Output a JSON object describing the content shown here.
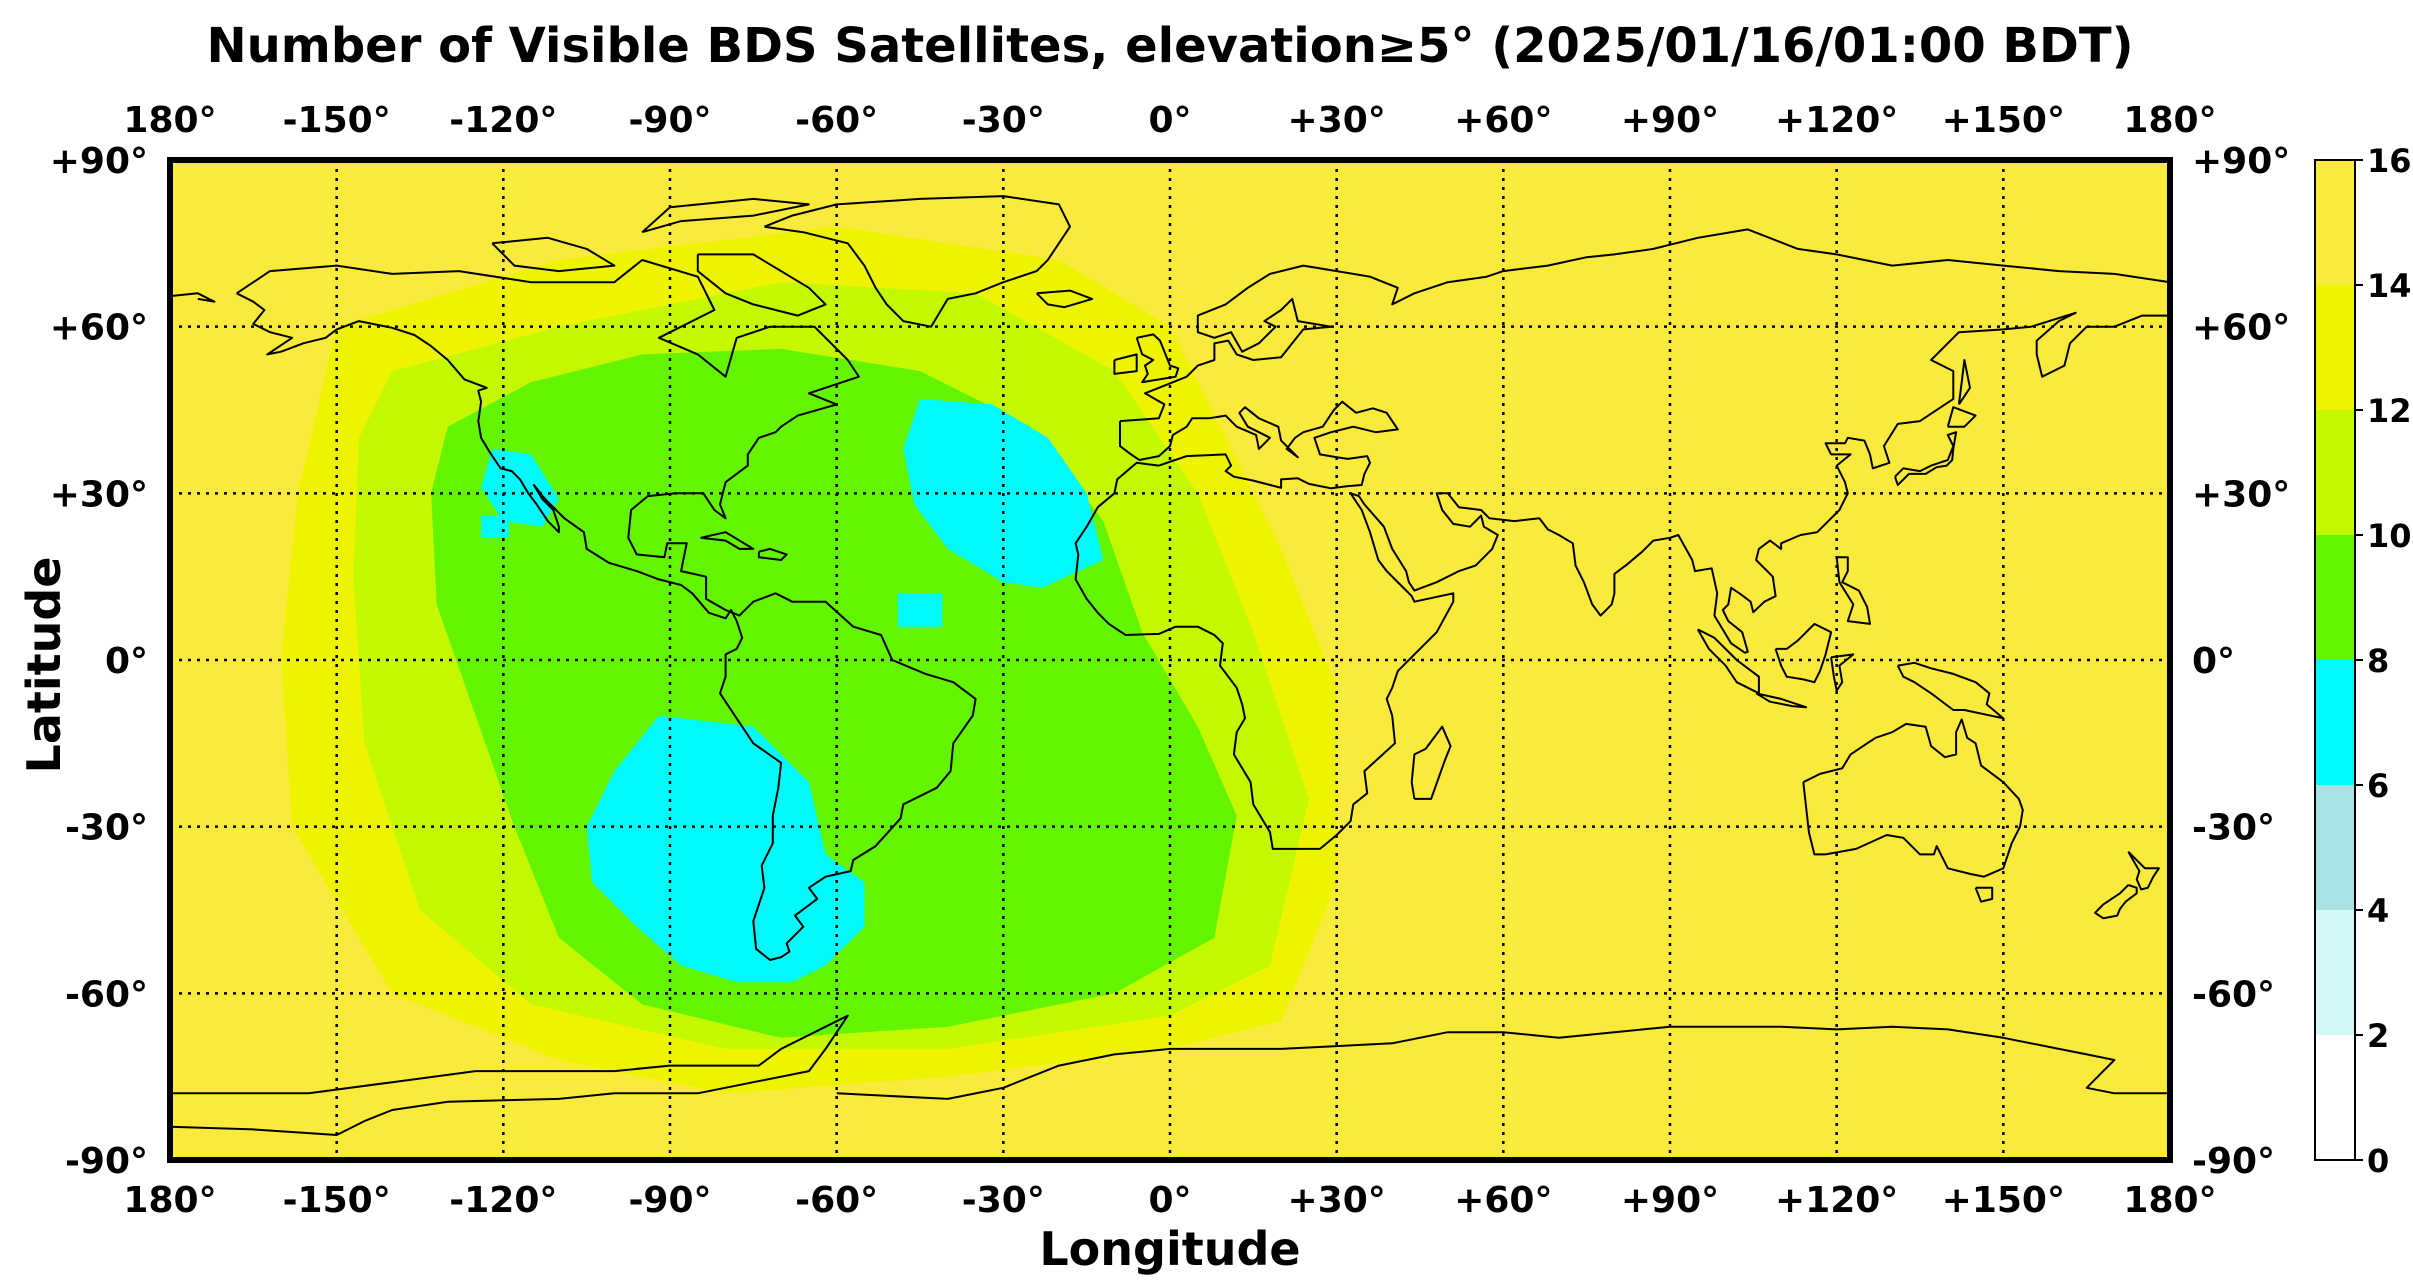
{
  "title": "Number of Visible BDS Satellites, elevation≥5° (2025/01/16/01:00 BDT)",
  "xlabel": "Longitude",
  "ylabel": "Latitude",
  "lon_ticks": [
    "180°",
    "-150°",
    "-120°",
    "-90°",
    "-60°",
    "-30°",
    "0°",
    "+30°",
    "+60°",
    "+90°",
    "+120°",
    "+150°",
    "180°"
  ],
  "lat_ticks": [
    "+90°",
    "+60°",
    "+30°",
    "0°",
    "-30°",
    "-60°",
    "-90°"
  ],
  "colorbar": {
    "ticks": [
      "0",
      "2",
      "4",
      "6",
      "8",
      "10",
      "12",
      "14",
      "16"
    ],
    "bins": [
      {
        "from": 0,
        "to": 2,
        "color": "#ffffff"
      },
      {
        "from": 2,
        "to": 4,
        "color": "#d2f7f7"
      },
      {
        "from": 4,
        "to": 6,
        "color": "#a8e2e2"
      },
      {
        "from": 6,
        "to": 8,
        "color": "#00fafa"
      },
      {
        "from": 8,
        "to": 10,
        "color": "#62f400"
      },
      {
        "from": 10,
        "to": 12,
        "color": "#c4f800"
      },
      {
        "from": 12,
        "to": 14,
        "color": "#eef400"
      },
      {
        "from": 14,
        "to": 16,
        "color": "#faea3c"
      }
    ]
  },
  "chart_data": {
    "type": "heatmap",
    "title": "Number of Visible BDS Satellites, elevation≥5° (2025/01/16/01:00 BDT)",
    "xlabel": "Longitude",
    "ylabel": "Latitude",
    "xlim": [
      -180,
      180
    ],
    "ylim": [
      -90,
      90
    ],
    "grid": true,
    "colorbar_range": [
      0,
      16
    ],
    "value_regions": [
      {
        "value": 15,
        "description": "Eastern hemisphere, Pacific, poles"
      },
      {
        "value": 12,
        "description": "Pacific/Atlantic transition band",
        "polygon": [
          [
            -150,
            60
          ],
          [
            -110,
            72
          ],
          [
            -60,
            78
          ],
          [
            -20,
            72
          ],
          [
            0,
            60
          ],
          [
            10,
            40
          ],
          [
            20,
            20
          ],
          [
            30,
            -5
          ],
          [
            30,
            -40
          ],
          [
            20,
            -65
          ],
          [
            0,
            -70
          ],
          [
            -40,
            -75
          ],
          [
            -80,
            -78
          ],
          [
            -110,
            -72
          ],
          [
            -140,
            -60
          ],
          [
            -158,
            -30
          ],
          [
            -160,
            0
          ],
          [
            -157,
            30
          ]
        ]
      },
      {
        "value": 11,
        "description": "Outer Americas/Atlantic ring",
        "polygon": [
          [
            -140,
            52
          ],
          [
            -110,
            60
          ],
          [
            -70,
            68
          ],
          [
            -35,
            66
          ],
          [
            -10,
            52
          ],
          [
            5,
            30
          ],
          [
            15,
            5
          ],
          [
            25,
            -25
          ],
          [
            18,
            -55
          ],
          [
            0,
            -64
          ],
          [
            -40,
            -70
          ],
          [
            -80,
            -70
          ],
          [
            -115,
            -62
          ],
          [
            -135,
            -45
          ],
          [
            -145,
            -15
          ],
          [
            -147,
            15
          ],
          [
            -146,
            40
          ]
        ]
      },
      {
        "value": 9,
        "description": "Americas and central Atlantic",
        "polygon": [
          [
            -130,
            42
          ],
          [
            -115,
            50
          ],
          [
            -95,
            55
          ],
          [
            -70,
            56
          ],
          [
            -45,
            52
          ],
          [
            -25,
            42
          ],
          [
            -12,
            25
          ],
          [
            -5,
            5
          ],
          [
            5,
            -12
          ],
          [
            12,
            -28
          ],
          [
            8,
            -50
          ],
          [
            -10,
            -60
          ],
          [
            -40,
            -66
          ],
          [
            -70,
            -68
          ],
          [
            -95,
            -62
          ],
          [
            -110,
            -50
          ],
          [
            -118,
            -30
          ],
          [
            -125,
            -10
          ],
          [
            -132,
            10
          ],
          [
            -133,
            30
          ]
        ]
      },
      {
        "value": 7,
        "description": "North Atlantic cyan patch",
        "polygon": [
          [
            -45,
            47
          ],
          [
            -32,
            46
          ],
          [
            -22,
            40
          ],
          [
            -15,
            30
          ],
          [
            -12,
            18
          ],
          [
            -23,
            13
          ],
          [
            -30,
            14
          ],
          [
            -40,
            20
          ],
          [
            -46,
            28
          ],
          [
            -48,
            38
          ]
        ]
      },
      {
        "value": 7,
        "description": "South America / SE Pacific cyan patch",
        "polygon": [
          [
            -92,
            -10
          ],
          [
            -75,
            -12
          ],
          [
            -65,
            -22
          ],
          [
            -62,
            -35
          ],
          [
            -55,
            -40
          ],
          [
            -55,
            -48
          ],
          [
            -62,
            -55
          ],
          [
            -68,
            -58
          ],
          [
            -78,
            -58
          ],
          [
            -88,
            -55
          ],
          [
            -96,
            -48
          ],
          [
            -104,
            -40
          ],
          [
            -105,
            -30
          ],
          [
            -100,
            -20
          ]
        ]
      },
      {
        "value": 7,
        "description": "Baja California cyan patch",
        "polygon": [
          [
            -122,
            38
          ],
          [
            -115,
            37
          ],
          [
            -110,
            29
          ],
          [
            -113,
            24
          ],
          [
            -120,
            25
          ],
          [
            -124,
            31
          ]
        ]
      },
      {
        "value": 7,
        "description": "Small cyan patch near -120,+23",
        "polygon": [
          [
            -124,
            26
          ],
          [
            -119,
            26
          ],
          [
            -119,
            22
          ],
          [
            -124,
            22
          ]
        ]
      },
      {
        "value": 7,
        "description": "Small cyan patch near -45,+10",
        "polygon": [
          [
            -49,
            12
          ],
          [
            -41,
            12
          ],
          [
            -41,
            6
          ],
          [
            -49,
            6
          ]
        ]
      }
    ]
  }
}
